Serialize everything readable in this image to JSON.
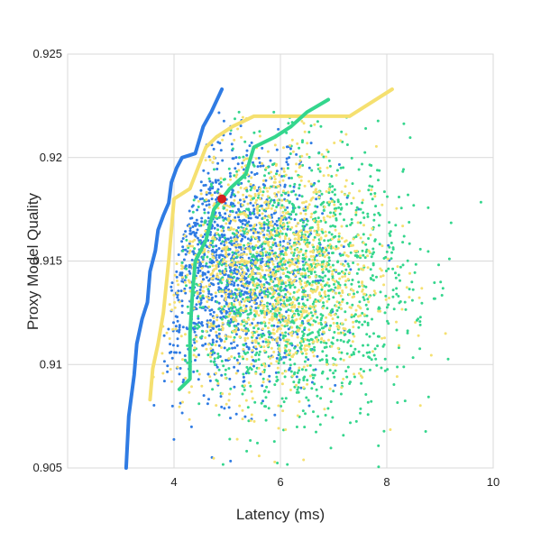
{
  "chart_data": {
    "type": "scatter",
    "title": "",
    "xlabel": "Latency (ms)",
    "ylabel": "Proxy Model Quality",
    "xlim": [
      2,
      10
    ],
    "ylim": [
      0.905,
      0.925
    ],
    "x_ticks": [
      4,
      6,
      8,
      10
    ],
    "y_ticks": [
      0.905,
      0.91,
      0.915,
      0.92,
      0.925
    ],
    "x_tick_labels": [
      "4",
      "6",
      "8",
      "10"
    ],
    "y_tick_labels": [
      "0.905",
      "0.91",
      "0.915",
      "0.92",
      "0.925"
    ],
    "grid": true,
    "legend": "none",
    "colors": {
      "blue": "#2f7be3",
      "green": "#34d68d",
      "yellow": "#f5e070",
      "marker": "#d61f1f",
      "grid": "#d9d9d9"
    },
    "frontier_series": [
      {
        "color": "blue",
        "points": [
          [
            3.1,
            0.905
          ],
          [
            3.15,
            0.9075
          ],
          [
            3.25,
            0.9095
          ],
          [
            3.3,
            0.911
          ],
          [
            3.4,
            0.9122
          ],
          [
            3.5,
            0.913
          ],
          [
            3.55,
            0.9145
          ],
          [
            3.65,
            0.9155
          ],
          [
            3.7,
            0.9165
          ],
          [
            3.8,
            0.9172
          ],
          [
            3.9,
            0.9178
          ],
          [
            3.95,
            0.9188
          ],
          [
            4.05,
            0.9195
          ],
          [
            4.15,
            0.92
          ],
          [
            4.4,
            0.9202
          ],
          [
            4.55,
            0.9215
          ],
          [
            4.7,
            0.9222
          ],
          [
            4.9,
            0.9233
          ]
        ]
      },
      {
        "color": "yellow",
        "points": [
          [
            3.55,
            0.9083
          ],
          [
            3.6,
            0.9098
          ],
          [
            3.7,
            0.911
          ],
          [
            3.8,
            0.9125
          ],
          [
            3.9,
            0.915
          ],
          [
            4.0,
            0.918
          ],
          [
            4.3,
            0.9185
          ],
          [
            4.6,
            0.9205
          ],
          [
            4.8,
            0.921
          ],
          [
            5.1,
            0.9215
          ],
          [
            5.5,
            0.922
          ],
          [
            6.2,
            0.922
          ],
          [
            7.3,
            0.922
          ],
          [
            8.1,
            0.9233
          ]
        ]
      },
      {
        "color": "green",
        "points": [
          [
            4.1,
            0.9088
          ],
          [
            4.3,
            0.9093
          ],
          [
            4.3,
            0.9115
          ],
          [
            4.35,
            0.9135
          ],
          [
            4.4,
            0.915
          ],
          [
            4.6,
            0.916
          ],
          [
            4.75,
            0.9175
          ],
          [
            5.05,
            0.9185
          ],
          [
            5.35,
            0.9192
          ],
          [
            5.5,
            0.9205
          ],
          [
            5.9,
            0.921
          ],
          [
            6.2,
            0.9215
          ],
          [
            6.5,
            0.9222
          ],
          [
            6.9,
            0.9228
          ]
        ]
      }
    ],
    "highlight_point": {
      "x": 4.9,
      "y": 0.918,
      "color": "marker"
    },
    "scatter_clouds": [
      {
        "color": "blue",
        "count": 1500,
        "cx": 5.0,
        "cy": 0.9148,
        "sx": 0.85,
        "sy": 0.0028,
        "min_x": 3.3
      },
      {
        "color": "green",
        "count": 1500,
        "cx": 6.3,
        "cy": 0.914,
        "sx": 1.05,
        "sy": 0.0032,
        "min_x": 4.1
      },
      {
        "color": "yellow",
        "count": 1300,
        "cx": 5.8,
        "cy": 0.9145,
        "sx": 1.0,
        "sy": 0.003,
        "min_x": 3.6
      }
    ]
  }
}
